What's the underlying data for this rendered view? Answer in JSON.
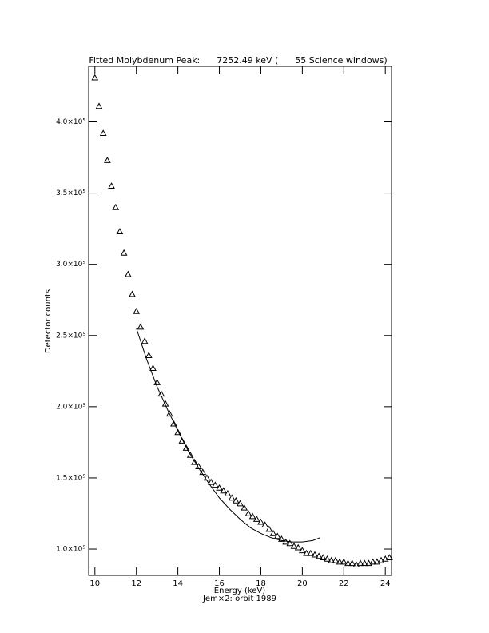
{
  "chart_data": {
    "type": "scatter",
    "title": "Fitted Molybdenum Peak:      7252.49 keV (      55 Science windows)",
    "x_label": "Energy (keV)",
    "subtitle": "Jem×2: orbit 1989",
    "y_label": "Detector counts",
    "xlim": [
      9.7,
      24.3
    ],
    "ylim": [
      81500,
      439000
    ],
    "xticks": [
      10,
      12,
      14,
      16,
      18,
      20,
      22,
      24
    ],
    "yticks": [
      {
        "value": 100000,
        "label": "1.0×10⁵"
      },
      {
        "value": 150000,
        "label": "1.5×10⁵"
      },
      {
        "value": 200000,
        "label": "2.0×10⁵"
      },
      {
        "value": 250000,
        "label": "2.5×10⁵"
      },
      {
        "value": 300000,
        "label": "3.0×10⁵"
      },
      {
        "value": 350000,
        "label": "3.5×10⁵"
      },
      {
        "value": 400000,
        "label": "4.0×10⁵"
      }
    ],
    "series": [
      {
        "type": "scatter",
        "marker": "triangle",
        "color": "#000000",
        "x": [
          10.0,
          10.2,
          10.4,
          10.6,
          10.8,
          11.0,
          11.2,
          11.4,
          11.6,
          11.8,
          12.0,
          12.2,
          12.4,
          12.6,
          12.8,
          13.0,
          13.2,
          13.4,
          13.6,
          13.8,
          14.0,
          14.2,
          14.4,
          14.6,
          14.8,
          15.0,
          15.2,
          15.4,
          15.6,
          15.8,
          16.0,
          16.2,
          16.4,
          16.6,
          16.8,
          17.0,
          17.2,
          17.4,
          17.6,
          17.8,
          18.0,
          18.2,
          18.4,
          18.6,
          18.8,
          19.0,
          19.2,
          19.4,
          19.6,
          19.8,
          20.0,
          20.2,
          20.4,
          20.6,
          20.8,
          21.0,
          21.2,
          21.4,
          21.6,
          21.8,
          22.0,
          22.2,
          22.4,
          22.6,
          22.8,
          23.0,
          23.2,
          23.4,
          23.6,
          23.8,
          24.0,
          24.2
        ],
        "values": [
          431000,
          411000,
          392000,
          373000,
          355000,
          340000,
          323000,
          308000,
          293000,
          279000,
          267000,
          256000,
          246000,
          236000,
          227000,
          217000,
          209000,
          202000,
          195000,
          188000,
          182000,
          176000,
          171000,
          166000,
          161000,
          158000,
          154000,
          150000,
          147000,
          145000,
          143000,
          141000,
          139000,
          136000,
          134000,
          132000,
          129000,
          125000,
          123000,
          121000,
          119000,
          117000,
          114000,
          111000,
          109000,
          107000,
          105000,
          104000,
          102000,
          101000,
          99000,
          97000,
          97000,
          96000,
          95000,
          94000,
          93000,
          92000,
          92000,
          91000,
          91000,
          90000,
          90000,
          89000,
          90000,
          90000,
          90000,
          91000,
          91000,
          92000,
          93000,
          94000
        ]
      },
      {
        "type": "line",
        "color": "#000000",
        "x": [
          12.0,
          12.5,
          13.0,
          13.5,
          14.0,
          14.5,
          15.0,
          15.5,
          16.0,
          16.5,
          17.0,
          17.5,
          18.0,
          18.5,
          19.0,
          19.5,
          20.0,
          20.5,
          20.85
        ],
        "values": [
          255000,
          233000,
          214000,
          198000,
          183000,
          169000,
          157000,
          146000,
          136000,
          128000,
          121000,
          115000,
          111000,
          108000,
          106000,
          105000,
          105000,
          106000,
          108000
        ]
      }
    ]
  }
}
